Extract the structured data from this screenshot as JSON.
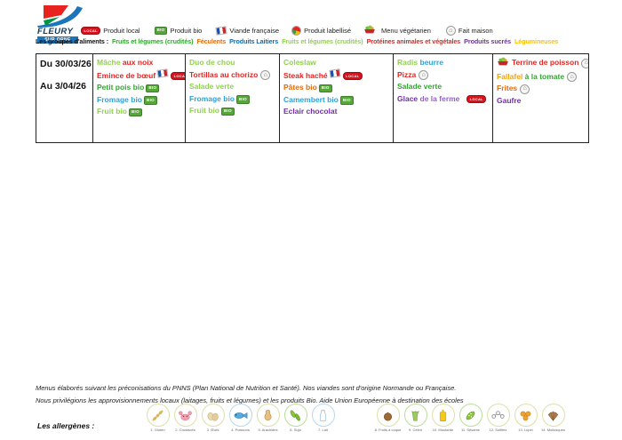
{
  "logo": {
    "name": "FLEURY",
    "subtitle": "SUR ORNE"
  },
  "badge_labels": {
    "local": "LOCAL",
    "bio": "BIO"
  },
  "legend": {
    "badges": [
      {
        "icon": "local-badge-icon",
        "label": "Produit local"
      },
      {
        "icon": "bio-badge-icon",
        "label": "Produit bio"
      },
      {
        "icon": "french-flag-icon",
        "label": "Viande française"
      },
      {
        "icon": "label-rosette-icon",
        "label": "Produit labellisé"
      },
      {
        "icon": "veggie-bowl-icon",
        "label": "Menu végétarien"
      },
      {
        "icon": "fait-maison-icon",
        "label": "Fait maison"
      }
    ],
    "groups_label": "Les groupes d'aliments :",
    "groups": [
      {
        "text": "Fruits et légumes (crudités)",
        "color": "green"
      },
      {
        "text": "Féculents",
        "color": "orange"
      },
      {
        "text": "Produits Laitiers",
        "color": "legendblue"
      },
      {
        "text": "Fruits et légumes (crudités)",
        "color": "lightgreen"
      },
      {
        "text": "Protéines animales et végétales",
        "color": "red"
      },
      {
        "text": "Produits sucrés",
        "color": "purple"
      },
      {
        "text": "Légumineuses",
        "color": "gold"
      }
    ]
  },
  "colors": {
    "green": "#33A532",
    "lightgreen": "#92D050",
    "red": "#E8231F",
    "orange": "#E26B0A",
    "blue": "#2BA3DB",
    "legendblue": "#0070C0",
    "purple": "#7030A0",
    "violet": "#9460C8",
    "yellow": "#F2A30A",
    "gold": "#FFC000",
    "black": "#1A1A1A"
  },
  "week": {
    "from": "Du 30/03/26",
    "to": "Au 3/04/26"
  },
  "menu_columns": [
    {
      "name": "day-1",
      "items": [
        {
          "segments": [
            {
              "text": "Mâche ",
              "color": "lightgreen"
            },
            {
              "text": "aux noix",
              "color": "red"
            }
          ],
          "icons": []
        },
        {
          "segments": [
            {
              "text": "Emince de bœuf",
              "color": "red"
            }
          ],
          "icons": [
            "french-flag-icon",
            "local-badge-icon"
          ]
        },
        {
          "segments": [
            {
              "text": "Petit pois bio",
              "color": "green"
            }
          ],
          "icons": [
            "bio-badge-icon"
          ]
        },
        {
          "segments": [
            {
              "text": "Fromage bio",
              "color": "blue"
            }
          ],
          "icons": [
            "bio-badge-icon"
          ]
        },
        {
          "segments": [
            {
              "text": "Fruit bio",
              "color": "lightgreen"
            }
          ],
          "icons": [
            "bio-badge-icon"
          ]
        }
      ]
    },
    {
      "name": "day-2",
      "items": [
        {
          "segments": [
            {
              "text": "Duo de chou",
              "color": "lightgreen"
            }
          ],
          "icons": []
        },
        {
          "segments": [
            {
              "text": "Tortillas au chorizo",
              "color": "red"
            }
          ],
          "icons": [
            "fait-maison-icon"
          ]
        },
        {
          "segments": [
            {
              "text": "Salade verte",
              "color": "lightgreen"
            }
          ],
          "icons": []
        },
        {
          "segments": [
            {
              "text": "Fromage bio",
              "color": "blue"
            }
          ],
          "icons": [
            "bio-badge-icon"
          ]
        },
        {
          "segments": [
            {
              "text": "Fruit bio",
              "color": "lightgreen"
            }
          ],
          "icons": [
            "bio-badge-icon"
          ]
        }
      ]
    },
    {
      "name": "day-3",
      "items": [
        {
          "segments": [
            {
              "text": "Coleslaw",
              "color": "lightgreen"
            }
          ],
          "icons": []
        },
        {
          "segments": [
            {
              "text": "Steak haché",
              "color": "red"
            }
          ],
          "icons": [
            "french-flag-icon",
            "local-badge-icon"
          ]
        },
        {
          "segments": [
            {
              "text": "Pâtes bio",
              "color": "orange"
            }
          ],
          "icons": [
            "bio-badge-icon"
          ]
        },
        {
          "segments": [
            {
              "text": "Camembert bio",
              "color": "blue"
            }
          ],
          "icons": [
            "bio-badge-icon"
          ]
        },
        {
          "segments": [
            {
              "text": "Eclair chocolat",
              "color": "purple"
            }
          ],
          "icons": []
        }
      ]
    },
    {
      "name": "day-4",
      "items": [
        {
          "segments": [
            {
              "text": "Radis ",
              "color": "lightgreen"
            },
            {
              "text": "beurre",
              "color": "blue"
            }
          ],
          "icons": []
        },
        {
          "segments": [
            {
              "text": "Pizza",
              "color": "red"
            }
          ],
          "icons": [
            "fait-maison-icon"
          ]
        },
        {
          "segments": [
            {
              "text": "Salade verte",
              "color": "green"
            }
          ],
          "icons": []
        },
        {
          "segments": [
            {
              "text": "Glace ",
              "color": "purple"
            },
            {
              "text": "de la ferme  ",
              "color": "violet"
            }
          ],
          "icons": [
            "local-badge-icon"
          ]
        }
      ]
    },
    {
      "name": "day-5",
      "items": [
        {
          "icon_before": "veggie-bowl-icon",
          "segments": [
            {
              "text": "Terrine de poisson",
              "color": "red"
            }
          ],
          "icons": [
            "fait-maison-icon"
          ]
        },
        {
          "segments": [
            {
              "text": "Fallafel ",
              "color": "yellow"
            },
            {
              "text": "à la tomate",
              "color": "green"
            }
          ],
          "icons": [
            "fait-maison-icon"
          ]
        },
        {
          "segments": [
            {
              "text": "Frites",
              "color": "orange"
            }
          ],
          "icons": [
            "fait-maison-icon"
          ]
        },
        {
          "segments": [
            {
              "text": "Gaufre",
              "color": "purple"
            }
          ],
          "icons": []
        }
      ]
    }
  ],
  "footer": {
    "line1": "Menus élaborés suivant les préconisations du PNNS (Plan National de Nutrition et Santé). Nos viandes sont d'origine Normande ou Française.",
    "line2": "Nous privilégions les approvisionnements locaux (laitages, fruits et légumes) et les produits Bio. Aide Union Européenne à destination des écoles"
  },
  "allergens": {
    "label": "Les allergènes :",
    "items": [
      {
        "label": "1. Gluten",
        "icon": "wheat-icon"
      },
      {
        "label": "2. Crustacés",
        "icon": "crab-icon"
      },
      {
        "label": "3. Œufs",
        "icon": "eggs-icon"
      },
      {
        "label": "4. Poissons",
        "icon": "fish-icon"
      },
      {
        "label": "5. Arachides",
        "icon": "peanut-icon"
      },
      {
        "label": "6. Soja",
        "icon": "soy-icon"
      },
      {
        "label": "7. Lait",
        "icon": "milk-icon"
      },
      {
        "label": "8. Fruits à coque",
        "icon": "nut-icon"
      },
      {
        "label": "9. Céleri",
        "icon": "celery-icon"
      },
      {
        "label": "10. Moutarde",
        "icon": "mustard-icon"
      },
      {
        "label": "11. Sésame",
        "icon": "sesame-icon"
      },
      {
        "label": "12. Sulfites",
        "icon": "sulfites-icon"
      },
      {
        "label": "13. Lupin",
        "icon": "lupin-icon"
      },
      {
        "label": "14. Mollusques",
        "icon": "shell-icon"
      }
    ]
  }
}
